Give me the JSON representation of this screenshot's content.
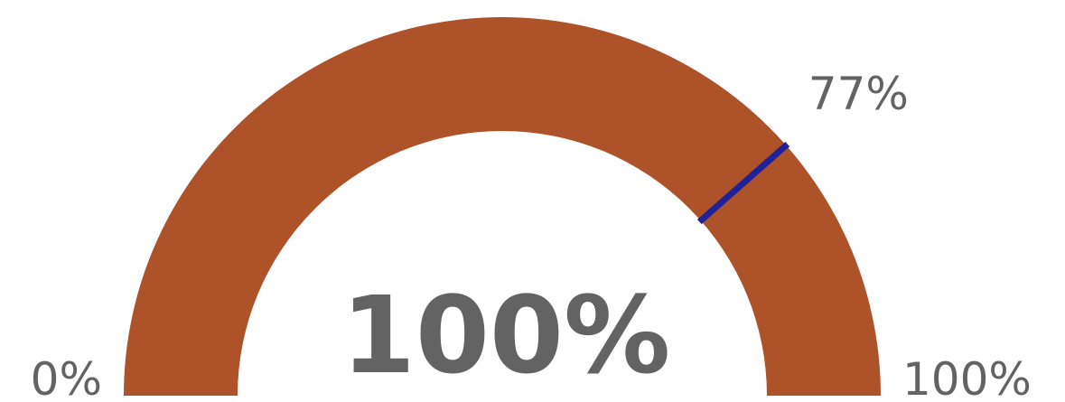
{
  "chart_data": {
    "type": "gauge",
    "min": 0,
    "max": 100,
    "value": 100,
    "target": 77,
    "value_label": "100%",
    "min_label": "0%",
    "max_label": "100%",
    "target_label": "77%",
    "colors": {
      "band": "#AD5229",
      "target_marker": "#1F2199",
      "text": "#636363",
      "background": "#FFFFFF"
    }
  }
}
